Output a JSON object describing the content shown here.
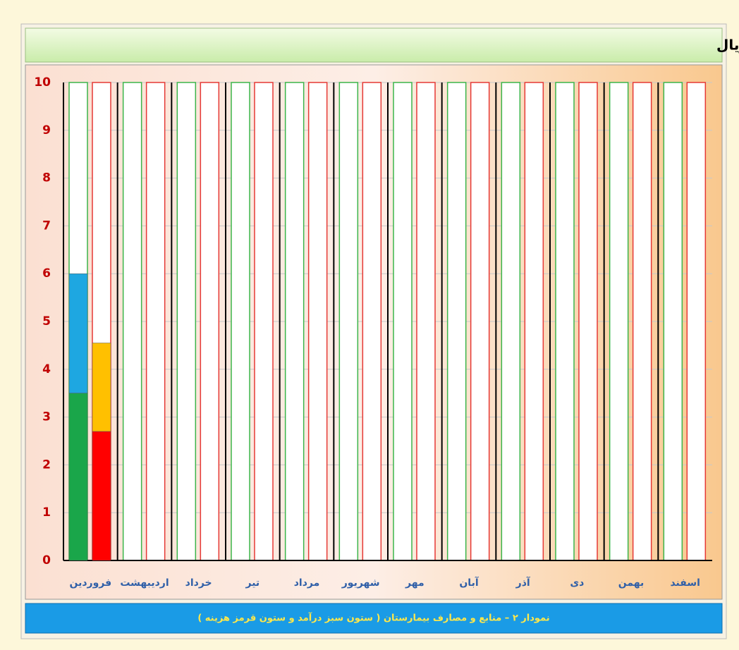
{
  "chart_data": {
    "type": "stacked_bar",
    "title": "ارقام نمودار به :  صد میلیارد ریال",
    "caption": "نمودار ۲ – منابع و مصارف بیمارستان ( ستون سبز درآمد و ستون قرمز هزینه )",
    "categories": [
      "فروردین",
      "اردیبهشت",
      "خرداد",
      "تیر",
      "مرداد",
      "شهریور",
      "مهر",
      "آبان",
      "آذر",
      "دی",
      "بهمن",
      "اسفند"
    ],
    "series": [
      {
        "stack": 0,
        "color": "#1aa64a",
        "values": [
          3.5,
          null,
          null,
          null,
          null,
          null,
          null,
          null,
          null,
          null,
          null,
          null
        ]
      },
      {
        "stack": 0,
        "color": "#1ea7e1",
        "values": [
          2.5,
          null,
          null,
          null,
          null,
          null,
          null,
          null,
          null,
          null,
          null,
          null
        ]
      },
      {
        "stack": 1,
        "color": "#ff0000",
        "values": [
          2.7,
          null,
          null,
          null,
          null,
          null,
          null,
          null,
          null,
          null,
          null,
          null
        ]
      },
      {
        "stack": 1,
        "color": "#ffc000",
        "values": [
          1.85,
          null,
          null,
          null,
          null,
          null,
          null,
          null,
          null,
          null,
          null,
          null
        ]
      }
    ],
    "stack_outline_colors": [
      "#3bb54a",
      "#e53935"
    ],
    "ylim": [
      0,
      10
    ],
    "yticks": [
      0,
      1,
      2,
      3,
      4,
      5,
      6,
      7,
      8,
      9,
      10
    ],
    "grid": true
  }
}
